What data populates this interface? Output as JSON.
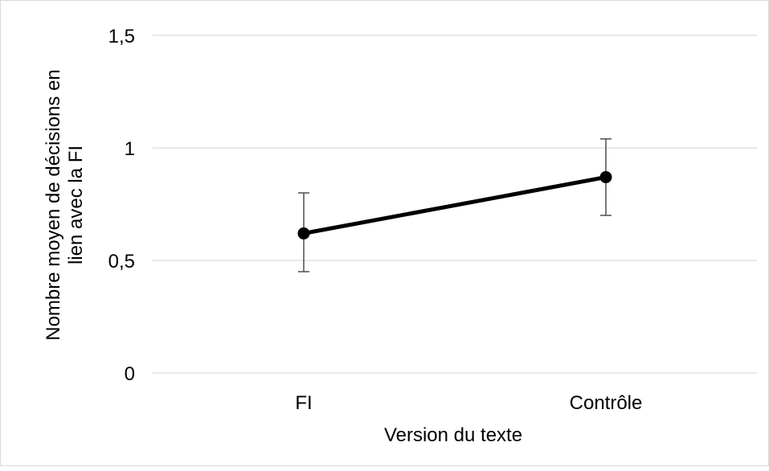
{
  "chart_data": {
    "type": "line",
    "categories": [
      "FI",
      "Contrôle"
    ],
    "series": [
      {
        "values": [
          0.62,
          0.87
        ],
        "error_low": [
          0.45,
          0.7
        ],
        "error_high": [
          0.8,
          1.04
        ]
      }
    ],
    "ylim": [
      0,
      1.5
    ],
    "yticks": [
      {
        "value": 0,
        "label": "0"
      },
      {
        "value": 0.5,
        "label": "0,5"
      },
      {
        "value": 1,
        "label": "1"
      },
      {
        "value": 1.5,
        "label": "1,5"
      }
    ],
    "xlabel": "Version du texte",
    "ylabel_lines": [
      "Nombre moyen de décisions en",
      "lien avec la FI"
    ],
    "grid": true,
    "colors": {
      "line": "#000000",
      "grid": "#d9d9d9",
      "error_bar": "#595959"
    }
  }
}
